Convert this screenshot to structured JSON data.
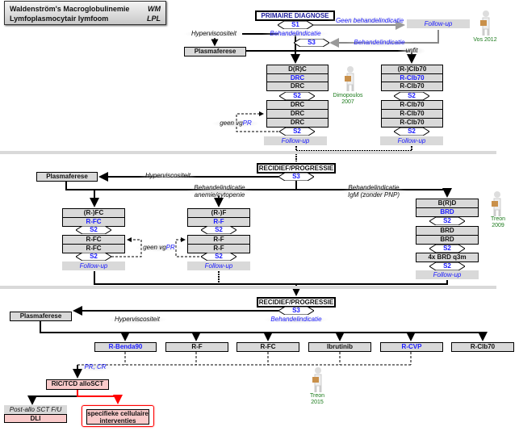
{
  "title": {
    "line1": "Waldenström's Macroglobulinemie",
    "abbr1": "WM",
    "line2": "Lymfoplasmocytair lymfoom",
    "abbr2": "LPL"
  },
  "primary": {
    "title": "PRIMAIRE DIAGNOSE",
    "s1": "S1",
    "s3": "S3",
    "geen": "Geen behandelindicatie",
    "follow_up": "Follow-up",
    "behandel": "Behandelindicatie",
    "behandel2": "Behandelindicatie",
    "hyper": "Hyperviscositeit",
    "plasma": "Plasmaferese",
    "unfit": "unfit",
    "cite_vos": "Vos 2012",
    "cite_dimo": "Dimopoulos 2007",
    "geen_vgpr_a": "geen vg",
    "geen_vgpr_b": "PR",
    "col1": {
      "rows1": [
        "D(R)C",
        "DRC",
        "DRC"
      ],
      "s2": "S2",
      "rows2": [
        "DRC",
        "DRC",
        "DRC"
      ],
      "s2b": "S2",
      "follow_up": "Follow-up"
    },
    "col2": {
      "rows1": [
        "(R-)Clb70",
        "R-Clb70",
        "R-Clb70"
      ],
      "s2": "S2",
      "rows2": [
        "R-Clb70",
        "R-Clb70",
        "R-Clb70"
      ],
      "s2b": "S2",
      "follow_up": "Follow-up"
    }
  },
  "relapse1": {
    "title": "RECIDIEF/PROGRESSIE",
    "s3": "S3",
    "plasma": "Plasmaferese",
    "hyper": "Hyperviscositeit",
    "behandel_anemie": "Behandelindicatie",
    "anemie": "anemie/cytopenie",
    "behandel_igm": "Behandelindicatie",
    "igm": "IgM (zonder PNP)",
    "geen_vgpr_a": "geen vg",
    "geen_vgpr_b": "PR",
    "cite_treon": "Treon 2009",
    "colA": {
      "rows1": [
        "(R-)FC",
        "R-FC"
      ],
      "s2": "S2",
      "rows2": [
        "R-FC",
        "R-FC"
      ],
      "s2b": "S2",
      "follow_up": "Follow-up"
    },
    "colB": {
      "rows1": [
        "(R-)F",
        "R-F"
      ],
      "s2": "S2",
      "rows2": [
        "R-F",
        "R-F"
      ],
      "s2b": "S2",
      "follow_up": "Follow-up"
    },
    "colC": {
      "rows1": [
        "B(R)D",
        "BRD"
      ],
      "s2": "S2",
      "rows2": [
        "BRD",
        "BRD"
      ],
      "s2b": "S2",
      "row3": "4x BRD q3m",
      "s2c": "S2",
      "follow_up": "Follow-up"
    }
  },
  "relapse2": {
    "title": "RECIDIEF/PROGRESSIE",
    "s3": "S3",
    "behandel": "Behandelindicatie",
    "plasma": "Plasmaferese",
    "hyper": "Hyperviscositeit",
    "options": [
      "R-Benda90",
      "R-F",
      "R-FC",
      "Ibrutinib",
      "R-CVP",
      "R-Clb70"
    ],
    "pr_cr": "PR, CR",
    "allo": "RIC/TCD alloSCT",
    "post_allo": "Post-allo SCT F/U",
    "dli": "DLI",
    "specifieke": "specifieke cellulaire interventies",
    "cite_treon": "Treon 2015"
  },
  "colors": {
    "blue": "#1a1aff",
    "box": "#d9d9d9",
    "pink": "#f9caca",
    "red": "#ff0000",
    "cite": "#1a7a1a"
  }
}
